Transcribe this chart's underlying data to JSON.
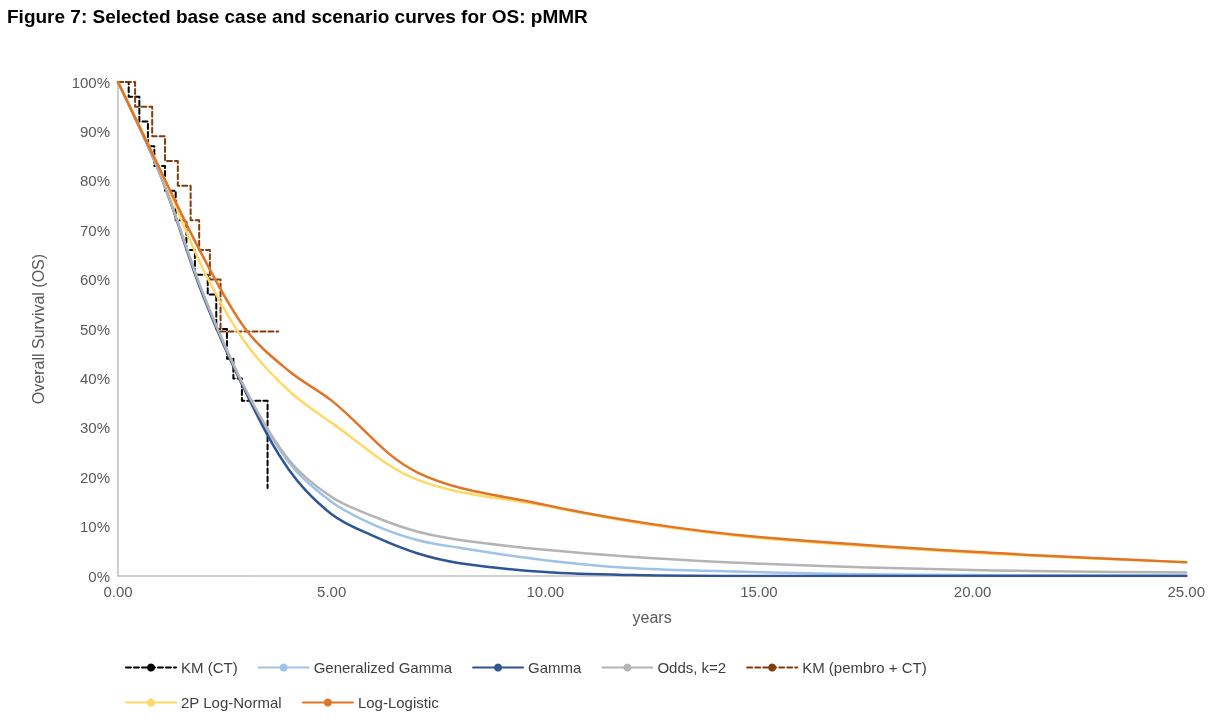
{
  "chart_data": {
    "type": "line",
    "title": "Figure 7: Selected base case and scenario curves for OS: pMMR",
    "xlabel": "years",
    "ylabel": "Overall Survival (OS)",
    "xlim": [
      0,
      25
    ],
    "xticks": [
      {
        "value": 0,
        "label": "0.00"
      },
      {
        "value": 5,
        "label": "5.00"
      },
      {
        "value": 10,
        "label": "10.00"
      },
      {
        "value": 15,
        "label": "15.00"
      },
      {
        "value": 20,
        "label": "20.00"
      },
      {
        "value": 25,
        "label": "25.00"
      }
    ],
    "ylim": [
      0,
      100
    ],
    "yticks": [
      {
        "value": 0,
        "label": "0%"
      },
      {
        "value": 10,
        "label": "10%"
      },
      {
        "value": 20,
        "label": "20%"
      },
      {
        "value": 30,
        "label": "30%"
      },
      {
        "value": 40,
        "label": "40%"
      },
      {
        "value": 50,
        "label": "50%"
      },
      {
        "value": 60,
        "label": "60%"
      },
      {
        "value": 70,
        "label": "70%"
      },
      {
        "value": 80,
        "label": "80%"
      },
      {
        "value": 90,
        "label": "90%"
      },
      {
        "value": 100,
        "label": "100%"
      }
    ],
    "grid": false,
    "legend": "bottom",
    "marker": "none",
    "series": [
      {
        "name": "KM (CT)",
        "type": "step",
        "line_style": "dashed",
        "color": "#000000",
        "x": [
          0,
          0.25,
          0.5,
          0.7,
          0.85,
          1.1,
          1.35,
          1.6,
          1.8,
          2.1,
          2.3,
          2.55,
          2.7,
          2.9,
          3.5
        ],
        "values": [
          100,
          97,
          92,
          87,
          83,
          78,
          72,
          66,
          61,
          57,
          50,
          44,
          40,
          35.5,
          17.8
        ]
      },
      {
        "name": "Generalized Gamma",
        "color": "#9dc3e6",
        "x": [
          0,
          1,
          2,
          3,
          4,
          5,
          6,
          7,
          8,
          10,
          12,
          14,
          17,
          20,
          25
        ],
        "values": [
          100,
          81,
          57,
          37.5,
          23,
          15,
          10.3,
          7.3,
          5.7,
          3.2,
          1.6,
          1,
          0.4,
          0.2,
          0.1
        ]
      },
      {
        "name": "Gamma",
        "color": "#2f5597",
        "x": [
          0,
          1,
          2,
          3,
          4,
          5,
          6,
          7,
          8,
          10,
          12,
          15,
          20,
          25
        ],
        "values": [
          100,
          81,
          56.5,
          37,
          21.5,
          12.5,
          8,
          4.6,
          2.6,
          0.8,
          0.2,
          0,
          0,
          0
        ]
      },
      {
        "name": "Odds, k=2",
        "color": "#b4b4b4",
        "x": [
          0,
          1,
          2,
          3,
          4,
          5,
          6,
          7,
          8,
          10,
          12,
          15,
          20,
          25
        ],
        "values": [
          100,
          81,
          57,
          37.5,
          23.5,
          16,
          12,
          9,
          7.3,
          5.3,
          3.9,
          2.5,
          1.2,
          0.7
        ]
      },
      {
        "name": "KM (pembro + CT)",
        "type": "step",
        "line_style": "dashed",
        "color": "#843c0c",
        "x": [
          0,
          0.4,
          0.8,
          1.1,
          1.4,
          1.7,
          1.9,
          2.15,
          2.4,
          3.75
        ],
        "values": [
          100,
          95,
          89,
          84,
          79,
          72,
          66,
          60,
          49.5,
          49.5
        ]
      },
      {
        "name": "2P Log-Normal",
        "color": "#ffd966",
        "x": [
          0,
          1,
          2,
          3,
          4,
          5,
          7,
          10,
          12.5,
          15,
          20,
          25
        ],
        "values": [
          100,
          82,
          62,
          47,
          37.5,
          31,
          19.5,
          14.2,
          10.3,
          7.7,
          4.7,
          2.8
        ]
      },
      {
        "name": "Log-Logistic",
        "color": "#e07428",
        "x": [
          0,
          1,
          2,
          3,
          4,
          5,
          7,
          10,
          12.5,
          15,
          20,
          25
        ],
        "values": [
          100,
          82,
          64.5,
          49.8,
          41.5,
          35.5,
          21,
          14.4,
          10.5,
          7.9,
          4.9,
          2.8
        ]
      }
    ]
  }
}
